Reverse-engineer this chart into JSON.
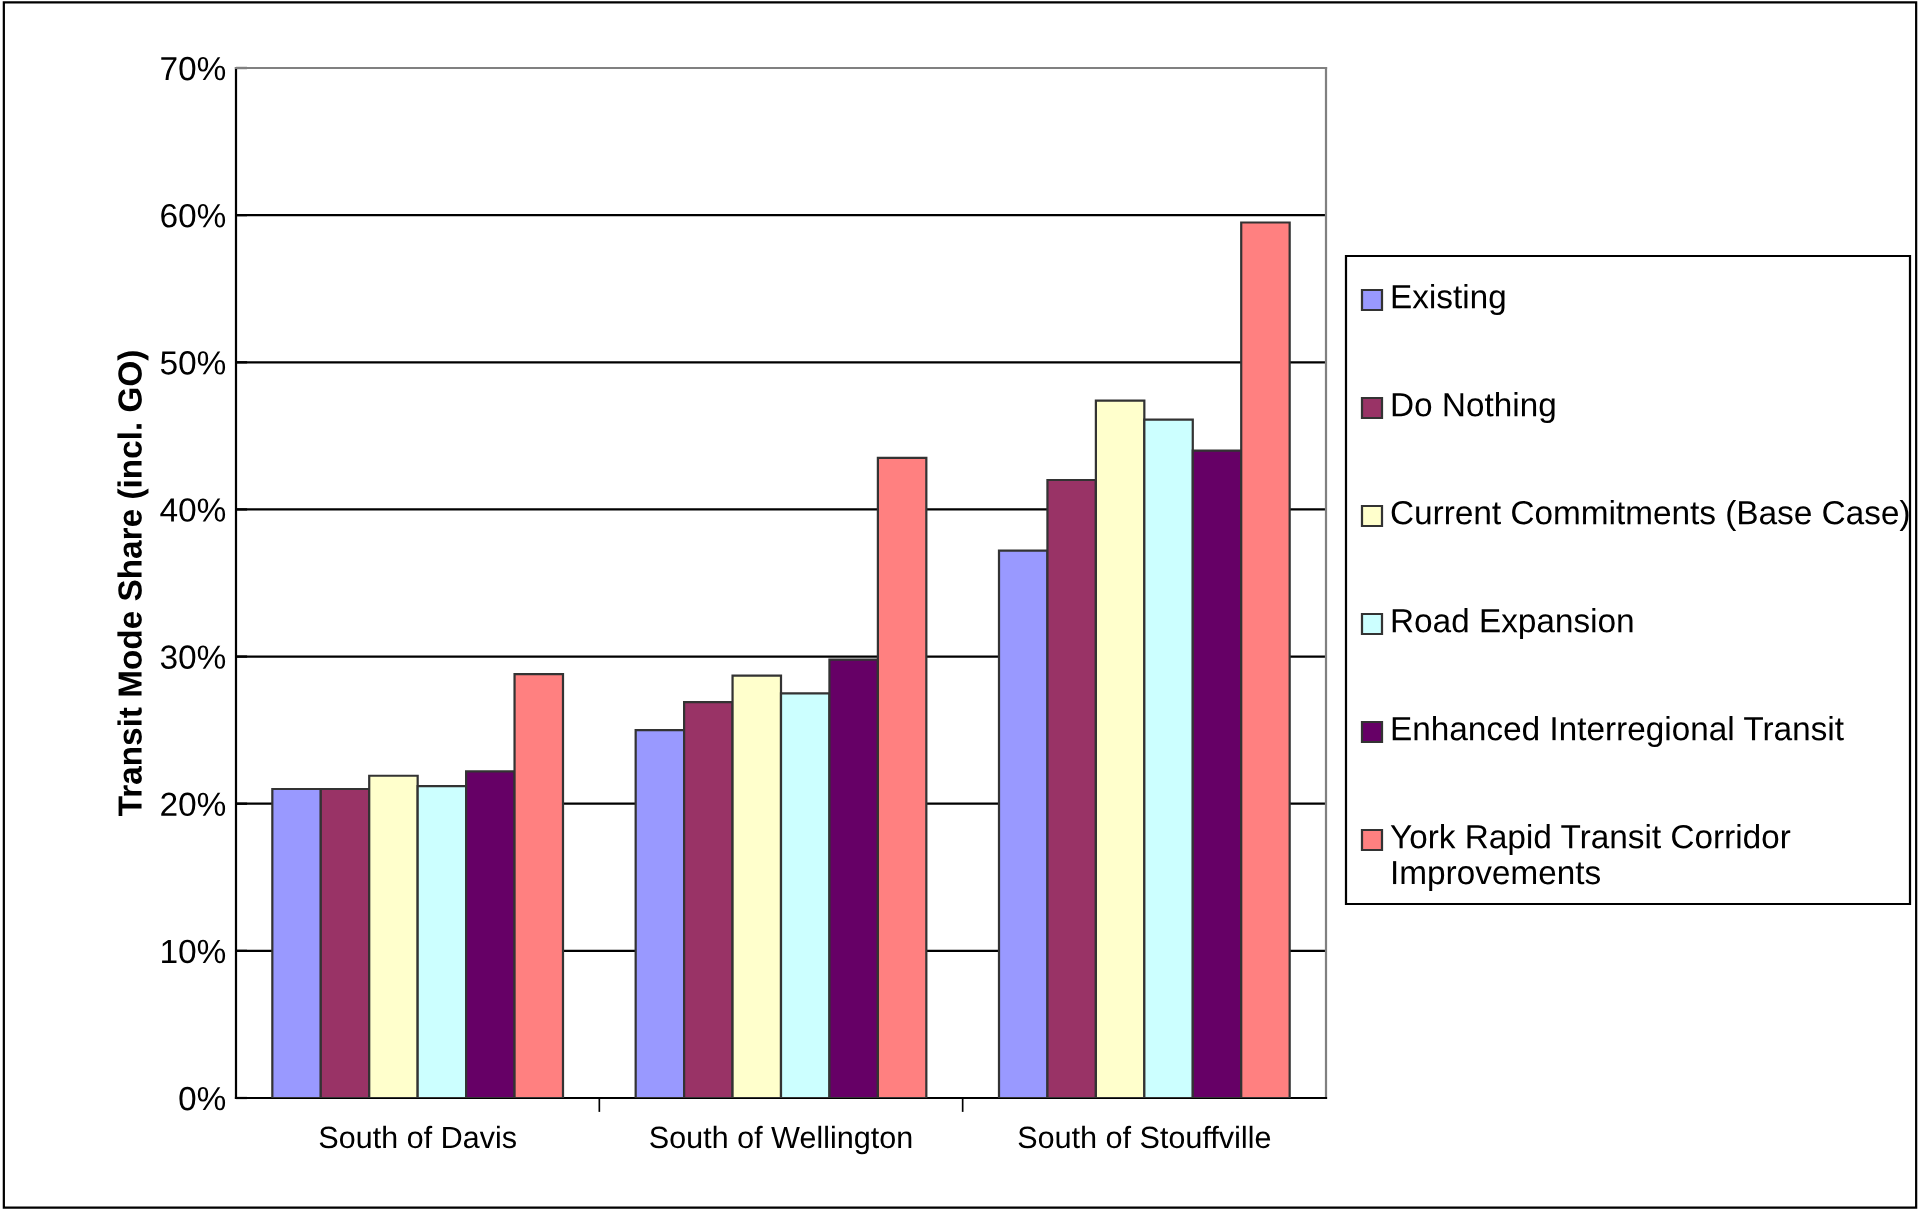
{
  "chart_data": {
    "type": "bar",
    "ylabel": "Transit Mode Share (incl. GO)",
    "categories": [
      "South of Davis",
      "South of Wellington",
      "South of Stouffville"
    ],
    "series": [
      {
        "name": "Existing",
        "color": "#9999ff",
        "values": [
          21,
          25,
          37.2
        ]
      },
      {
        "name": "Do Nothing",
        "color": "#993366",
        "values": [
          21,
          26.9,
          42
        ]
      },
      {
        "name": "Current Commitments (Base Case)",
        "color": "#ffffcc",
        "values": [
          21.9,
          28.7,
          47.4
        ]
      },
      {
        "name": "Road Expansion",
        "color": "#ccffff",
        "values": [
          21.2,
          27.5,
          46.1
        ]
      },
      {
        "name": "Enhanced Interregional Transit",
        "color": "#660066",
        "values": [
          22.2,
          29.8,
          44
        ]
      },
      {
        "name": "York Rapid Transit Corridor Improvements",
        "color": "#ff8080",
        "values": [
          28.8,
          43.5,
          59.5
        ]
      }
    ],
    "ylim": [
      0,
      70
    ],
    "yticks": [
      {
        "value": 0,
        "label": "0%"
      },
      {
        "value": 10,
        "label": "10%"
      },
      {
        "value": 20,
        "label": "20%"
      },
      {
        "value": 30,
        "label": "30%"
      },
      {
        "value": 40,
        "label": "40%"
      },
      {
        "value": 50,
        "label": "50%"
      },
      {
        "value": 60,
        "label": "60%"
      },
      {
        "value": 70,
        "label": "70%"
      }
    ],
    "grid": "y",
    "legend": "right"
  }
}
